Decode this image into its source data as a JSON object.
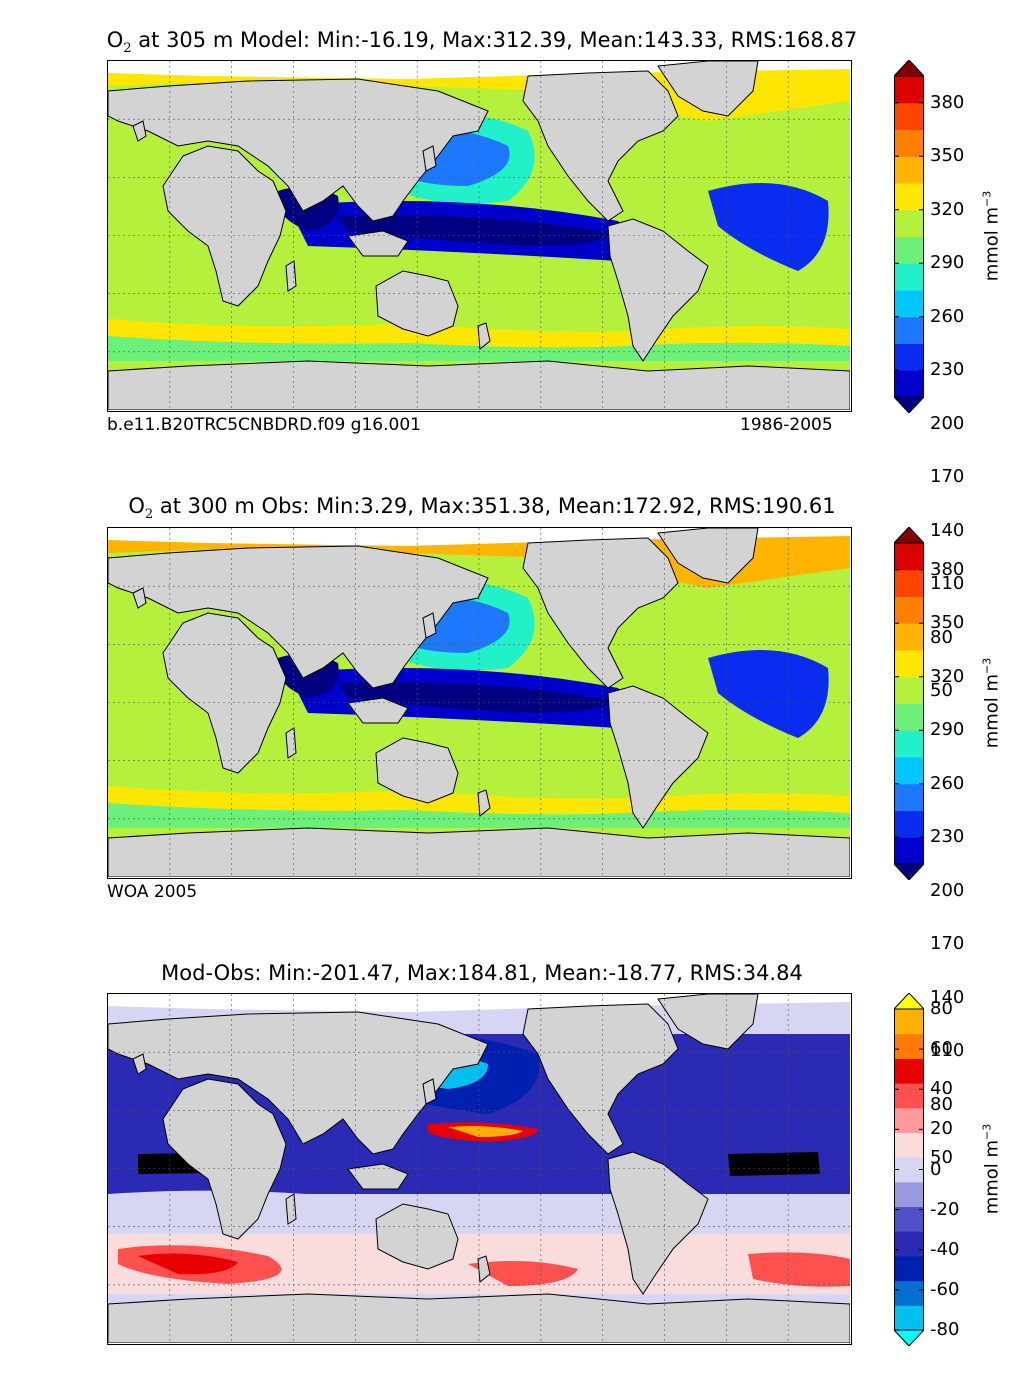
{
  "panels": [
    {
      "title_species": "O",
      "title_sub": "2",
      "title_rest": " at 305 m Model: Min:-16.19, Max:312.39, Mean:143.33, RMS:168.87",
      "footer_left": "b.e11.B20TRC5CNBDRD.f09 g16.001",
      "footer_right": "1986-2005",
      "colorbar": {
        "ticks": [
          "380",
          "350",
          "320",
          "290",
          "260",
          "230",
          "200",
          "170",
          "140",
          "110",
          "80",
          "50"
        ],
        "units_base": "mmol m",
        "units_exp": "−3",
        "colors": [
          "#000080",
          "#0000cd",
          "#0a2cf0",
          "#1e78ff",
          "#00c8ff",
          "#22f0c8",
          "#6cf07a",
          "#b4f03c",
          "#ffe600",
          "#ffb400",
          "#ff8000",
          "#ff4400",
          "#dc0000",
          "#800000"
        ]
      }
    },
    {
      "title_species": "O",
      "title_sub": "2",
      "title_rest": " at 300 m Obs: Min:3.29, Max:351.38, Mean:172.92, RMS:190.61",
      "footer_left": "WOA 2005",
      "footer_right": "",
      "colorbar": {
        "ticks": [
          "380",
          "350",
          "320",
          "290",
          "260",
          "230",
          "200",
          "170",
          "140",
          "110",
          "80",
          "50"
        ],
        "units_base": "mmol m",
        "units_exp": "−3",
        "colors": [
          "#000080",
          "#0000cd",
          "#0a2cf0",
          "#1e78ff",
          "#00c8ff",
          "#22f0c8",
          "#6cf07a",
          "#b4f03c",
          "#ffe600",
          "#ffb400",
          "#ff8000",
          "#ff4400",
          "#dc0000",
          "#800000"
        ]
      }
    },
    {
      "title_species": "",
      "title_sub": "",
      "title_rest": "Mod-Obs: Min:-201.47, Max:184.81, Mean:-18.77, RMS:34.84",
      "footer_left": "",
      "footer_right": "",
      "colorbar": {
        "ticks": [
          "80",
          "60",
          "40",
          "20",
          "0",
          "-20",
          "-40",
          "-60",
          "-80"
        ],
        "units_base": "mmol m",
        "units_exp": "−3",
        "colors": [
          "#00ffff",
          "#00c0f0",
          "#0070d0",
          "#0020b0",
          "#2a2ab4",
          "#5050c8",
          "#9a9ae0",
          "#d6d6f4",
          "#fbdcdc",
          "#ff9a9a",
          "#ff5050",
          "#e80000",
          "#ff7a00",
          "#ffb000",
          "#ffff00"
        ]
      }
    }
  ],
  "map_colors": {
    "land": "#d3d3d3",
    "ice": "#ffffff",
    "grid": "#555555"
  }
}
